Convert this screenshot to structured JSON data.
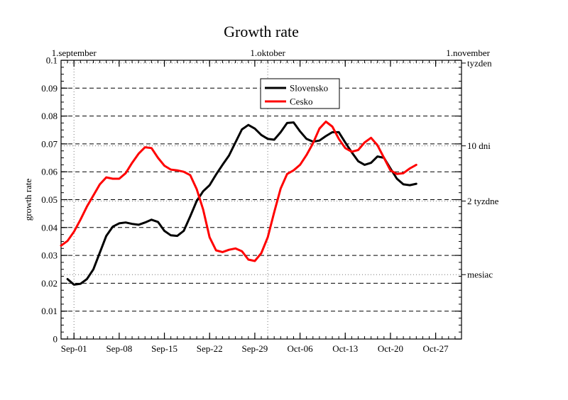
{
  "chart_data": {
    "type": "line",
    "title": "Growth rate",
    "xlabel": "",
    "ylabel": "growth rate",
    "x_axis": {
      "type": "date",
      "range": [
        "2020-08-30",
        "2020-10-31"
      ],
      "ticks": [
        {
          "date": "2020-09-01",
          "label": "Sep-01"
        },
        {
          "date": "2020-09-08",
          "label": "Sep-08"
        },
        {
          "date": "2020-09-15",
          "label": "Sep-15"
        },
        {
          "date": "2020-09-22",
          "label": "Sep-22"
        },
        {
          "date": "2020-09-29",
          "label": "Sep-29"
        },
        {
          "date": "2020-10-06",
          "label": "Oct-06"
        },
        {
          "date": "2020-10-13",
          "label": "Oct-13"
        },
        {
          "date": "2020-10-20",
          "label": "Oct-20"
        },
        {
          "date": "2020-10-27",
          "label": "Oct-27"
        }
      ]
    },
    "top_axis_labels": [
      {
        "date": "2020-09-01",
        "label": "1.september"
      },
      {
        "date": "2020-10-01",
        "label": "1.oktober"
      },
      {
        "date": "2020-11-01",
        "label": "1.november"
      }
    ],
    "y_axis": {
      "range": [
        0,
        0.1
      ],
      "ticks": [
        {
          "value": 0,
          "label": "0"
        },
        {
          "value": 0.01,
          "label": "0.01"
        },
        {
          "value": 0.02,
          "label": "0.02"
        },
        {
          "value": 0.03,
          "label": "0.03"
        },
        {
          "value": 0.04,
          "label": "0.04"
        },
        {
          "value": 0.05,
          "label": "0.05"
        },
        {
          "value": 0.06,
          "label": "0.06"
        },
        {
          "value": 0.07,
          "label": "0.07"
        },
        {
          "value": 0.08,
          "label": "0.08"
        },
        {
          "value": 0.09,
          "label": "0.09"
        },
        {
          "value": 0.1,
          "label": "0.1"
        }
      ]
    },
    "right_axis_labels": [
      {
        "value": 0.099,
        "label": "tyzden"
      },
      {
        "value": 0.0693,
        "label": "10 dni"
      },
      {
        "value": 0.0495,
        "label": "2 tyzdne"
      },
      {
        "value": 0.0231,
        "label": "mesiac"
      }
    ],
    "grid": true,
    "legend": {
      "placement": "top-center"
    },
    "series": [
      {
        "name": "Slovensko",
        "color": "#000000",
        "x": [
          "2020-08-31",
          "2020-09-01",
          "2020-09-02",
          "2020-09-03",
          "2020-09-04",
          "2020-09-05",
          "2020-09-06",
          "2020-09-07",
          "2020-09-08",
          "2020-09-09",
          "2020-09-10",
          "2020-09-11",
          "2020-09-12",
          "2020-09-13",
          "2020-09-14",
          "2020-09-15",
          "2020-09-16",
          "2020-09-17",
          "2020-09-18",
          "2020-09-19",
          "2020-09-20",
          "2020-09-21",
          "2020-09-22",
          "2020-09-23",
          "2020-09-24",
          "2020-09-25",
          "2020-09-26",
          "2020-09-27",
          "2020-09-28",
          "2020-09-29",
          "2020-09-30",
          "2020-10-01",
          "2020-10-02",
          "2020-10-03",
          "2020-10-04",
          "2020-10-05",
          "2020-10-06",
          "2020-10-07",
          "2020-10-08",
          "2020-10-09",
          "2020-10-10",
          "2020-10-11",
          "2020-10-12",
          "2020-10-13",
          "2020-10-14",
          "2020-10-15",
          "2020-10-16",
          "2020-10-17",
          "2020-10-18",
          "2020-10-19",
          "2020-10-20",
          "2020-10-21",
          "2020-10-22",
          "2020-10-23",
          "2020-10-24"
        ],
        "values": [
          0.0215,
          0.0195,
          0.0198,
          0.0215,
          0.025,
          0.031,
          0.037,
          0.0403,
          0.0415,
          0.0418,
          0.0413,
          0.041,
          0.0418,
          0.0428,
          0.042,
          0.0388,
          0.0372,
          0.037,
          0.0388,
          0.044,
          0.0495,
          0.053,
          0.0552,
          0.059,
          0.0625,
          0.0658,
          0.0705,
          0.0752,
          0.0768,
          0.0755,
          0.0732,
          0.0718,
          0.0715,
          0.0742,
          0.0775,
          0.0777,
          0.0745,
          0.0718,
          0.0708,
          0.0712,
          0.0728,
          0.0742,
          0.0742,
          0.0705,
          0.067,
          0.0638,
          0.0625,
          0.0632,
          0.0655,
          0.065,
          0.0612,
          0.0575,
          0.0555,
          0.0552,
          0.0557
        ]
      },
      {
        "name": "Cesko",
        "color": "#ff0000",
        "x": [
          "2020-08-30",
          "2020-08-31",
          "2020-09-01",
          "2020-09-02",
          "2020-09-03",
          "2020-09-04",
          "2020-09-05",
          "2020-09-06",
          "2020-09-07",
          "2020-09-08",
          "2020-09-09",
          "2020-09-10",
          "2020-09-11",
          "2020-09-12",
          "2020-09-13",
          "2020-09-14",
          "2020-09-15",
          "2020-09-16",
          "2020-09-17",
          "2020-09-18",
          "2020-09-19",
          "2020-09-20",
          "2020-09-21",
          "2020-09-22",
          "2020-09-23",
          "2020-09-24",
          "2020-09-25",
          "2020-09-26",
          "2020-09-27",
          "2020-09-28",
          "2020-09-29",
          "2020-09-30",
          "2020-10-01",
          "2020-10-02",
          "2020-10-03",
          "2020-10-04",
          "2020-10-05",
          "2020-10-06",
          "2020-10-07",
          "2020-10-08",
          "2020-10-09",
          "2020-10-10",
          "2020-10-11",
          "2020-10-12",
          "2020-10-13",
          "2020-10-14",
          "2020-10-15",
          "2020-10-16",
          "2020-10-17",
          "2020-10-18",
          "2020-10-19",
          "2020-10-20",
          "2020-10-21",
          "2020-10-22",
          "2020-10-23",
          "2020-10-24"
        ],
        "values": [
          0.0335,
          0.0352,
          0.0385,
          0.0428,
          0.0475,
          0.0515,
          0.0555,
          0.058,
          0.0575,
          0.0575,
          0.0595,
          0.0632,
          0.0665,
          0.0688,
          0.0685,
          0.065,
          0.0622,
          0.0608,
          0.0605,
          0.06,
          0.0588,
          0.0538,
          0.0465,
          0.0365,
          0.0318,
          0.0312,
          0.032,
          0.0325,
          0.0315,
          0.0285,
          0.028,
          0.0308,
          0.0365,
          0.0455,
          0.054,
          0.0592,
          0.0605,
          0.0625,
          0.066,
          0.0702,
          0.0755,
          0.078,
          0.0762,
          0.0718,
          0.0685,
          0.0672,
          0.0678,
          0.0705,
          0.0722,
          0.0695,
          0.065,
          0.0605,
          0.0592,
          0.0595,
          0.0612,
          0.0625
        ]
      }
    ]
  }
}
